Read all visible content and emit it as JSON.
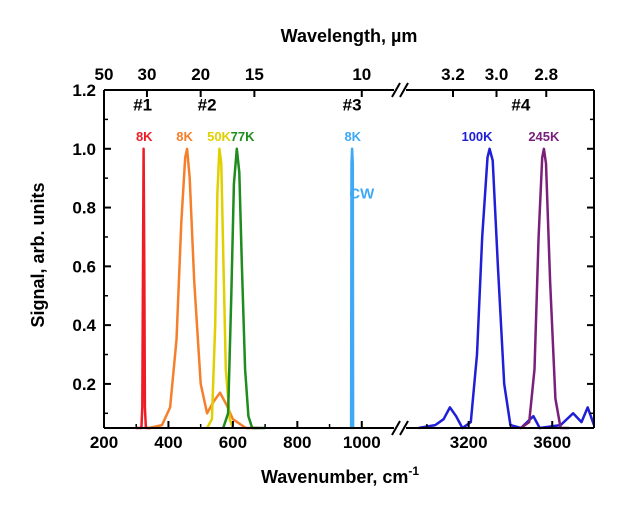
{
  "chart_data": {
    "type": "line",
    "xlabel": "Wavenumber, cm",
    "xlabel_sup": "-1",
    "x2label": "Wavelength, µm",
    "ylabel": "Signal, arb. units",
    "ylim": [
      0.05,
      1.2
    ],
    "axis_break": true,
    "x_left_range": [
      200,
      1100
    ],
    "x_right_range": [
      2900,
      3800
    ],
    "x_ticks_left": [
      200,
      400,
      600,
      800,
      1000
    ],
    "x_ticks_right": [
      3200,
      3600
    ],
    "x2_ticks_left": [
      {
        "label": "50",
        "wavenumber": 200
      },
      {
        "label": "30",
        "wavenumber": 333.3
      },
      {
        "label": "20",
        "wavenumber": 500
      },
      {
        "label": "15",
        "wavenumber": 666.7
      },
      {
        "label": "10",
        "wavenumber": 1000
      }
    ],
    "x2_ticks_right": [
      {
        "label": "3.2",
        "wavenumber": 3125
      },
      {
        "label": "3.0",
        "wavenumber": 3333.3
      },
      {
        "label": "2.8",
        "wavenumber": 3571.4
      }
    ],
    "y_ticks": [
      {
        "value": 0.2,
        "label": "0.2"
      },
      {
        "value": 0.4,
        "label": "0.4"
      },
      {
        "value": 0.6,
        "label": "0.6"
      },
      {
        "value": 0.8,
        "label": "0.8"
      },
      {
        "value": 1.0,
        "label": "1.0"
      },
      {
        "value": 1.2,
        "label": "1.2"
      }
    ],
    "annotations": [
      {
        "text": "#1",
        "x": 320,
        "y": 1.15
      },
      {
        "text": "#2",
        "x": 520,
        "y": 1.15
      },
      {
        "text": "#3",
        "x": 970,
        "y": 1.15
      },
      {
        "text": "#4",
        "x": 3450,
        "y": 1.15
      }
    ],
    "series": [
      {
        "name": "8K",
        "color": "#ee1c25",
        "label_x": 325,
        "peak_x": 323,
        "points": [
          [
            300,
            0.05
          ],
          [
            316,
            0.05
          ],
          [
            319,
            0.12
          ],
          [
            321,
            0.6
          ],
          [
            323,
            1.0
          ],
          [
            325,
            0.6
          ],
          [
            327,
            0.12
          ],
          [
            330,
            0.05
          ],
          [
            345,
            0.05
          ]
        ]
      },
      {
        "name": "8K",
        "color": "#f57f2b",
        "label_x": 450,
        "peak_x": 455,
        "points": [
          [
            340,
            0.05
          ],
          [
            380,
            0.06
          ],
          [
            405,
            0.12
          ],
          [
            425,
            0.35
          ],
          [
            440,
            0.75
          ],
          [
            452,
            0.97
          ],
          [
            458,
            1.0
          ],
          [
            466,
            0.9
          ],
          [
            480,
            0.55
          ],
          [
            500,
            0.2
          ],
          [
            520,
            0.1
          ],
          [
            540,
            0.14
          ],
          [
            560,
            0.17
          ],
          [
            580,
            0.13
          ],
          [
            600,
            0.08
          ],
          [
            640,
            0.05
          ],
          [
            680,
            0.05
          ]
        ]
      },
      {
        "name": "50K",
        "color": "#e0d000",
        "label_x": 557,
        "peak_x": 560,
        "points": [
          [
            520,
            0.05
          ],
          [
            535,
            0.08
          ],
          [
            545,
            0.4
          ],
          [
            552,
            0.85
          ],
          [
            558,
            1.0
          ],
          [
            564,
            0.95
          ],
          [
            570,
            0.65
          ],
          [
            578,
            0.25
          ],
          [
            590,
            0.08
          ],
          [
            600,
            0.05
          ]
        ]
      },
      {
        "name": "77K",
        "color": "#1e8c1e",
        "label_x": 630,
        "peak_x": 612,
        "points": [
          [
            570,
            0.05
          ],
          [
            585,
            0.1
          ],
          [
            595,
            0.5
          ],
          [
            603,
            0.88
          ],
          [
            612,
            1.0
          ],
          [
            620,
            0.92
          ],
          [
            628,
            0.6
          ],
          [
            638,
            0.25
          ],
          [
            648,
            0.09
          ],
          [
            660,
            0.05
          ],
          [
            700,
            0.05
          ]
        ]
      },
      {
        "name": "8K",
        "color": "#3fa9f5",
        "label_x": 972,
        "peak_x": 970,
        "points": [
          [
            964,
            0.05
          ],
          [
            967,
            0.05
          ],
          [
            968,
            0.95
          ],
          [
            970,
            1.0
          ],
          [
            972,
            0.95
          ],
          [
            973,
            0.05
          ],
          [
            976,
            0.05
          ]
        ]
      },
      {
        "name": "100K",
        "color": "#1f1fd8",
        "label_x": 3240,
        "peak_x": 3300,
        "points": [
          [
            2960,
            0.05
          ],
          [
            3040,
            0.06
          ],
          [
            3080,
            0.08
          ],
          [
            3110,
            0.12
          ],
          [
            3140,
            0.09
          ],
          [
            3170,
            0.05
          ],
          [
            3210,
            0.07
          ],
          [
            3240,
            0.3
          ],
          [
            3265,
            0.7
          ],
          [
            3290,
            0.97
          ],
          [
            3300,
            1.0
          ],
          [
            3315,
            0.96
          ],
          [
            3340,
            0.6
          ],
          [
            3370,
            0.2
          ],
          [
            3400,
            0.06
          ],
          [
            3450,
            0.05
          ],
          [
            3510,
            0.09
          ],
          [
            3540,
            0.05
          ],
          [
            3640,
            0.06
          ],
          [
            3700,
            0.1
          ],
          [
            3740,
            0.07
          ],
          [
            3770,
            0.12
          ],
          [
            3800,
            0.06
          ]
        ]
      },
      {
        "name": "245K",
        "color": "#7a1f7a",
        "label_x": 3560,
        "peak_x": 3560,
        "points": [
          [
            3450,
            0.05
          ],
          [
            3490,
            0.07
          ],
          [
            3515,
            0.25
          ],
          [
            3535,
            0.7
          ],
          [
            3552,
            0.97
          ],
          [
            3560,
            1.0
          ],
          [
            3570,
            0.95
          ],
          [
            3590,
            0.55
          ],
          [
            3615,
            0.15
          ],
          [
            3640,
            0.05
          ],
          [
            3680,
            0.05
          ]
        ]
      }
    ],
    "curve_annotations": [
      {
        "text": "CW",
        "x": 1000,
        "y": 0.83,
        "color": "#3fa9f5"
      }
    ]
  }
}
